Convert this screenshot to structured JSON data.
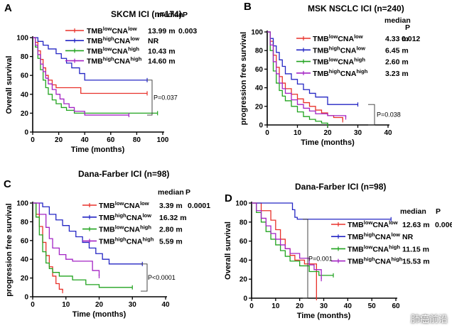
{
  "colors": {
    "low_low": "#e8312a",
    "high_low": "#2426c4",
    "low_high": "#21a31f",
    "high_high": "#a323c4",
    "axis": "#000000"
  },
  "watermark": "肺癌前沿",
  "chart_data": [
    {
      "id": "A",
      "panel_letter": "A",
      "type": "line",
      "title": "SKCM ICI (n=174)",
      "xlabel": "Time (months)",
      "ylabel": "Overall survival",
      "xlim": [
        0,
        100
      ],
      "ylim": [
        0,
        100
      ],
      "xticks": [
        0,
        20,
        40,
        60,
        80,
        100
      ],
      "yticks": [
        0,
        20,
        40,
        60,
        80,
        100
      ],
      "median_header": "median",
      "p_header": "P",
      "p_value": "0.003",
      "bracket_label": "P=0.037",
      "series": [
        {
          "key": "low_low",
          "name_html": "TMB<sup>low</sup>CNA<sup>low</sup>",
          "median": "13.99 m",
          "points": [
            [
              0,
              100
            ],
            [
              2,
              95
            ],
            [
              4,
              86
            ],
            [
              6,
              77
            ],
            [
              8,
              68
            ],
            [
              10,
              60
            ],
            [
              12,
              55
            ],
            [
              15,
              50
            ],
            [
              18,
              47
            ],
            [
              30,
              47
            ],
            [
              37,
              41
            ],
            [
              88,
              41
            ]
          ]
        },
        {
          "key": "high_low",
          "name_html": "TMB<sup>high</sup>CNA<sup>low</sup>",
          "median": "NR",
          "points": [
            [
              0,
              100
            ],
            [
              4,
              96
            ],
            [
              8,
              92
            ],
            [
              12,
              88
            ],
            [
              18,
              83
            ],
            [
              22,
              78
            ],
            [
              26,
              73
            ],
            [
              30,
              68
            ],
            [
              36,
              62
            ],
            [
              40,
              55
            ],
            [
              88,
              55
            ]
          ]
        },
        {
          "key": "low_high",
          "name_html": "TMB<sup>low</sup>CNA<sup>high</sup>",
          "median": "10.43 m",
          "points": [
            [
              0,
              100
            ],
            [
              2,
              90
            ],
            [
              4,
              78
            ],
            [
              6,
              66
            ],
            [
              8,
              55
            ],
            [
              10,
              47
            ],
            [
              12,
              40
            ],
            [
              15,
              34
            ],
            [
              18,
              30
            ],
            [
              22,
              26
            ],
            [
              26,
              23
            ],
            [
              32,
              20
            ],
            [
              96,
              20
            ]
          ]
        },
        {
          "key": "high_high",
          "name_html": "TMB<sup>high</sup>CNA<sup>high</sup>",
          "median": "14.60 m",
          "points": [
            [
              0,
              100
            ],
            [
              2,
              92
            ],
            [
              4,
              82
            ],
            [
              6,
              72
            ],
            [
              8,
              64
            ],
            [
              10,
              57
            ],
            [
              12,
              51
            ],
            [
              15,
              45
            ],
            [
              18,
              40
            ],
            [
              21,
              35
            ],
            [
              24,
              30
            ],
            [
              28,
              26
            ],
            [
              32,
              22
            ],
            [
              40,
              18
            ],
            [
              74,
              18
            ]
          ]
        }
      ]
    },
    {
      "id": "B",
      "panel_letter": "B",
      "type": "line",
      "title": "MSK NSCLC ICI (n=240)",
      "xlabel": "Time (months)",
      "ylabel": "progression free survival",
      "xlim": [
        0,
        40
      ],
      "ylim": [
        0,
        100
      ],
      "xticks": [
        0,
        10,
        20,
        30,
        40
      ],
      "yticks": [
        0,
        20,
        40,
        60,
        80,
        100
      ],
      "median_header": "median",
      "p_header": "P",
      "p_value": "0.012",
      "bracket_label": "P=0.038",
      "series": [
        {
          "key": "low_low",
          "name_html": "TMB<sup>low</sup>CNA<sup>low</sup>",
          "median": "4.33 m",
          "points": [
            [
              0,
              100
            ],
            [
              1,
              90
            ],
            [
              2,
              75
            ],
            [
              3,
              62
            ],
            [
              4,
              52
            ],
            [
              5,
              45
            ],
            [
              6,
              39
            ],
            [
              8,
              33
            ],
            [
              10,
              28
            ],
            [
              12,
              24
            ],
            [
              14,
              20
            ],
            [
              16,
              16
            ],
            [
              18,
              13
            ],
            [
              20,
              10
            ],
            [
              22,
              8
            ],
            [
              25,
              5
            ]
          ]
        },
        {
          "key": "high_low",
          "name_html": "TMB<sup>high</sup>CNA<sup>low</sup>",
          "median": "6.45 m",
          "points": [
            [
              0,
              100
            ],
            [
              1,
              93
            ],
            [
              2,
              85
            ],
            [
              3,
              78
            ],
            [
              4,
              70
            ],
            [
              5,
              63
            ],
            [
              6,
              55
            ],
            [
              8,
              49
            ],
            [
              10,
              44
            ],
            [
              12,
              38
            ],
            [
              14,
              34
            ],
            [
              16,
              30
            ],
            [
              20,
              22
            ],
            [
              30,
              22
            ]
          ]
        },
        {
          "key": "low_high",
          "name_html": "TMB<sup>low</sup>CNA<sup>high</sup>",
          "median": "2.60 m",
          "points": [
            [
              0,
              100
            ],
            [
              1,
              80
            ],
            [
              2,
              58
            ],
            [
              3,
              45
            ],
            [
              4,
              37
            ],
            [
              5,
              31
            ],
            [
              6,
              26
            ],
            [
              8,
              20
            ],
            [
              10,
              14
            ],
            [
              12,
              9
            ],
            [
              14,
              6
            ],
            [
              16,
              4
            ],
            [
              18,
              2
            ],
            [
              20,
              0
            ]
          ]
        },
        {
          "key": "high_high",
          "name_html": "TMB<sup>high</sup>CNA<sup>high</sup>",
          "median": "3.23 m",
          "points": [
            [
              0,
              100
            ],
            [
              1,
              86
            ],
            [
              2,
              68
            ],
            [
              3,
              55
            ],
            [
              4,
              45
            ],
            [
              5,
              39
            ],
            [
              6,
              34
            ],
            [
              8,
              27
            ],
            [
              10,
              22
            ],
            [
              12,
              18
            ],
            [
              14,
              15
            ],
            [
              16,
              12
            ],
            [
              20,
              10
            ],
            [
              26,
              8
            ]
          ]
        }
      ]
    },
    {
      "id": "C",
      "panel_letter": "C",
      "type": "line",
      "title": "Dana-Farber ICI (n=98)",
      "xlabel": "Time (months)",
      "ylabel": "progression free survival",
      "xlim": [
        0,
        40
      ],
      "ylim": [
        0,
        100
      ],
      "xticks": [
        0,
        10,
        20,
        30,
        40
      ],
      "yticks": [
        0,
        20,
        40,
        60,
        80,
        100
      ],
      "median_header": "median",
      "p_header": "P",
      "p_value": "0.0001",
      "bracket_label": "P<0.0001",
      "series": [
        {
          "key": "low_low",
          "name_html": "TMB<sup>low</sup>CNA<sup>low</sup>",
          "median": "3.39 m",
          "points": [
            [
              0,
              100
            ],
            [
              1,
              88
            ],
            [
              2,
              75
            ],
            [
              3,
              58
            ],
            [
              4,
              44
            ],
            [
              5,
              32
            ],
            [
              6,
              22
            ],
            [
              7,
              14
            ],
            [
              8,
              8
            ],
            [
              9,
              6
            ]
          ]
        },
        {
          "key": "high_low",
          "name_html": "TMB<sup>high</sup>CNA<sup>low</sup>",
          "median": "16.32 m",
          "points": [
            [
              0,
              100
            ],
            [
              3,
              96
            ],
            [
              5,
              88
            ],
            [
              7,
              82
            ],
            [
              9,
              76
            ],
            [
              11,
              70
            ],
            [
              13,
              64
            ],
            [
              15,
              58
            ],
            [
              17,
              52
            ],
            [
              19,
              46
            ],
            [
              21,
              40
            ],
            [
              23,
              35
            ],
            [
              33,
              35
            ]
          ]
        },
        {
          "key": "low_high",
          "name_html": "TMB<sup>low</sup>CNA<sup>high</sup>",
          "median": "2.80 m",
          "points": [
            [
              0,
              100
            ],
            [
              1,
              85
            ],
            [
              2,
              66
            ],
            [
              3,
              48
            ],
            [
              4,
              36
            ],
            [
              5,
              30
            ],
            [
              6,
              26
            ],
            [
              8,
              22
            ],
            [
              12,
              18
            ],
            [
              16,
              13
            ],
            [
              20,
              10
            ],
            [
              30,
              10
            ]
          ]
        },
        {
          "key": "high_high",
          "name_html": "TMB<sup>high</sup>CNA<sup>high</sup>",
          "median": "5.59 m",
          "points": [
            [
              0,
              100
            ],
            [
              2,
              88
            ],
            [
              4,
              74
            ],
            [
              5,
              62
            ],
            [
              6,
              52
            ],
            [
              8,
              45
            ],
            [
              10,
              40
            ],
            [
              12,
              38
            ],
            [
              16,
              38
            ],
            [
              18,
              28
            ],
            [
              20,
              22
            ]
          ]
        }
      ]
    },
    {
      "id": "D",
      "panel_letter": "D",
      "type": "line",
      "title": "Dana-Farber ICI (n=98)",
      "xlabel": "Time (months)",
      "ylabel": "Overall survival",
      "xlim": [
        0,
        60
      ],
      "ylim": [
        0,
        100
      ],
      "xticks": [
        0,
        10,
        20,
        30,
        40,
        50,
        60
      ],
      "yticks": [
        0,
        20,
        40,
        60,
        80,
        100
      ],
      "median_header": "median",
      "p_header": "P",
      "p_value": "0.006",
      "bracket_label": "P=0.001",
      "series": [
        {
          "key": "low_low",
          "name_html": "TMB<sup>low</sup>CNA<sup>low</sup>",
          "median": "12.63 m",
          "points": [
            [
              0,
              100
            ],
            [
              4,
              92
            ],
            [
              8,
              82
            ],
            [
              10,
              72
            ],
            [
              12,
              62
            ],
            [
              14,
              52
            ],
            [
              16,
              45
            ],
            [
              18,
              40
            ],
            [
              22,
              36
            ],
            [
              26,
              36
            ],
            [
              27,
              0
            ]
          ]
        },
        {
          "key": "high_low",
          "name_html": "TMB<sup>high</sup>CNA<sup>low</sup>",
          "median": "NR",
          "points": [
            [
              0,
              100
            ],
            [
              16,
              100
            ],
            [
              17,
              93
            ],
            [
              18,
              85
            ],
            [
              19,
              83
            ],
            [
              58,
              83
            ]
          ]
        },
        {
          "key": "low_high",
          "name_html": "TMB<sup>low</sup>CNA<sup>high</sup>",
          "median": "11.15 m",
          "points": [
            [
              0,
              100
            ],
            [
              2,
              90
            ],
            [
              4,
              80
            ],
            [
              6,
              70
            ],
            [
              8,
              62
            ],
            [
              10,
              56
            ],
            [
              12,
              50
            ],
            [
              14,
              44
            ],
            [
              16,
              39
            ],
            [
              20,
              34
            ],
            [
              24,
              28
            ],
            [
              28,
              24
            ],
            [
              34,
              24
            ]
          ]
        },
        {
          "key": "high_high",
          "name_html": "TMB<sup>high</sup>CNA<sup>high</sup>",
          "median": "15.53 m",
          "points": [
            [
              0,
              100
            ],
            [
              2,
              92
            ],
            [
              4,
              84
            ],
            [
              6,
              76
            ],
            [
              8,
              68
            ],
            [
              10,
              62
            ],
            [
              12,
              56
            ],
            [
              14,
              52
            ],
            [
              16,
              47
            ],
            [
              20,
              42
            ],
            [
              24,
              35
            ],
            [
              26,
              30
            ],
            [
              29,
              20
            ]
          ]
        }
      ]
    }
  ]
}
